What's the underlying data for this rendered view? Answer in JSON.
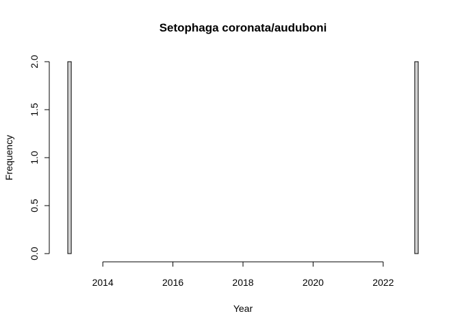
{
  "chart_data": {
    "type": "bar",
    "title": "Setophaga coronata/auduboni",
    "xlabel": "Year",
    "ylabel": "Frequency",
    "xlim": [
      2013,
      2023
    ],
    "ylim": [
      0,
      2
    ],
    "x_ticks": [
      "2014",
      "2016",
      "2018",
      "2020",
      "2022"
    ],
    "y_ticks": [
      "0.0",
      "0.5",
      "1.0",
      "1.5",
      "2.0"
    ],
    "bin_width": 0.1,
    "bins": [
      {
        "start": 2013.0,
        "end": 2013.1,
        "value": 2
      },
      {
        "start": 2022.9,
        "end": 2023.0,
        "value": 2
      }
    ],
    "zero_bin_range": [
      2013.1,
      2022.9
    ],
    "bar_fill": "#d3d3d3",
    "grid": false
  }
}
